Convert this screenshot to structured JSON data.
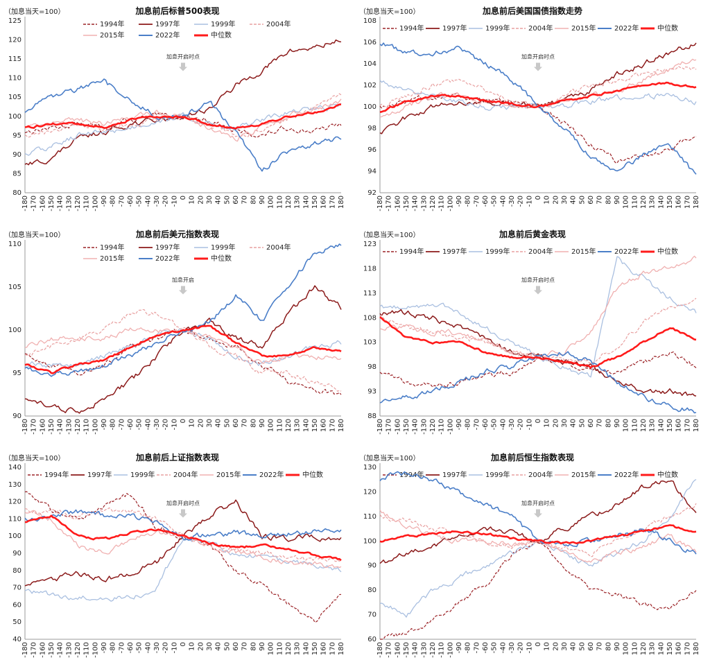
{
  "legend_years": [
    "1994年",
    "1997年",
    "1999年",
    "2004年",
    "2015年",
    "2022年",
    "中位数"
  ],
  "series_colors": [
    "#9b2226",
    "#8b1a1a",
    "#a9bfe0",
    "#e8a0a0",
    "#f0b0b0",
    "#4a7ec8",
    "#ff1a1a"
  ],
  "x_ticks": [
    "-180",
    "-170",
    "-160",
    "-150",
    "-140",
    "-130",
    "-120",
    "-110",
    "-100",
    "-90",
    "-80",
    "-70",
    "-60",
    "-50",
    "-40",
    "-30",
    "-20",
    "-10",
    "0",
    "10",
    "20",
    "30",
    "40",
    "50",
    "60",
    "70",
    "80",
    "90",
    "100",
    "110",
    "120",
    "130",
    "140",
    "150",
    "160",
    "170",
    "180"
  ],
  "chart_data": [
    {
      "type": "line",
      "title": "加息前后标普500表现",
      "unit_label": "（加息当天=100）",
      "annotation": "加息开启时点",
      "ylim": [
        80,
        125
      ],
      "yticks": [
        80,
        85,
        90,
        95,
        100,
        105,
        110,
        115,
        120,
        125
      ],
      "x": [
        -180,
        -150,
        -120,
        -90,
        -60,
        -30,
        0,
        30,
        60,
        90,
        120,
        150,
        180
      ],
      "series": [
        {
          "name": "1994年",
          "values": [
            96,
            97,
            98,
            97,
            99,
            100,
            100,
            99,
            96,
            95,
            97,
            96,
            98
          ]
        },
        {
          "name": "1997年",
          "values": [
            87,
            89,
            94,
            96,
            98,
            99,
            100,
            102,
            108,
            112,
            117,
            118,
            120
          ]
        },
        {
          "name": "1999年",
          "values": [
            90,
            92,
            95,
            96,
            97,
            99,
            100,
            98,
            97,
            99,
            101,
            102,
            103
          ]
        },
        {
          "name": "2004年",
          "values": [
            95,
            96,
            98,
            97,
            98,
            99,
            100,
            98,
            95,
            96,
            99,
            102,
            106
          ]
        },
        {
          "name": "2015年",
          "values": [
            97,
            98,
            99,
            98,
            100,
            101,
            100,
            97,
            94,
            97,
            100,
            102,
            104
          ]
        },
        {
          "name": "2022年",
          "values": [
            101,
            105,
            107,
            109,
            104,
            100,
            100,
            104,
            96,
            86,
            91,
            93,
            94
          ]
        },
        {
          "name": "中位数",
          "values": [
            97,
            98,
            98,
            97,
            99,
            100,
            100,
            98,
            97,
            98,
            100,
            101,
            103
          ]
        }
      ]
    },
    {
      "type": "line",
      "title": "加息前后美国国债指数走势",
      "unit_label": "（加息当天=100）",
      "annotation": "加息开启时点",
      "ylim": [
        92,
        108
      ],
      "yticks": [
        92,
        94,
        96,
        98,
        100,
        102,
        104,
        106,
        108
      ],
      "x": [
        -180,
        -150,
        -120,
        -90,
        -60,
        -30,
        0,
        30,
        60,
        90,
        120,
        150,
        180
      ],
      "series": [
        {
          "name": "1994年",
          "values": [
            100,
            100.5,
            101,
            101,
            100.5,
            100.3,
            100,
            98.5,
            96.5,
            95,
            95.5,
            96,
            97.5
          ]
        },
        {
          "name": "1997年",
          "values": [
            97.5,
            99,
            100,
            100.5,
            100.5,
            100.3,
            100,
            100.5,
            101.5,
            103,
            104,
            105,
            106
          ]
        },
        {
          "name": "1999年",
          "values": [
            102.5,
            101.5,
            101,
            100.5,
            100,
            100,
            100,
            100,
            100.5,
            100.8,
            101,
            101,
            100.5
          ]
        },
        {
          "name": "2004年",
          "values": [
            100,
            101,
            102,
            102.5,
            101.5,
            100.5,
            100,
            101,
            102,
            102.5,
            103,
            103.5,
            103.5
          ]
        },
        {
          "name": "2015年",
          "values": [
            99,
            100,
            101,
            101,
            100.5,
            100.3,
            100,
            100.5,
            101,
            101.5,
            102.5,
            103.5,
            104.5
          ]
        },
        {
          "name": "2022年",
          "values": [
            106,
            105,
            105,
            105.5,
            104,
            102.5,
            100,
            98,
            95.5,
            94,
            95.5,
            96.5,
            93.5
          ]
        },
        {
          "name": "中位数",
          "values": [
            99.5,
            100.5,
            101,
            101,
            100.5,
            100.3,
            100,
            100.5,
            101,
            101.5,
            102,
            102.2,
            101.8
          ]
        }
      ]
    },
    {
      "type": "line",
      "title": "加息前后美元指数表现",
      "unit_label": "（加息当天=100）",
      "annotation": "加息开启",
      "ylim": [
        90,
        110
      ],
      "yticks": [
        90,
        95,
        100,
        105,
        110
      ],
      "x": [
        -180,
        -150,
        -120,
        -90,
        -60,
        -30,
        0,
        30,
        60,
        90,
        120,
        150,
        180
      ],
      "series": [
        {
          "name": "1994年",
          "values": [
            97,
            96,
            95,
            96,
            98,
            99,
            100,
            99,
            98,
            96,
            94,
            93,
            92.5
          ]
        },
        {
          "name": "1997年",
          "values": [
            92,
            91,
            90.5,
            92,
            94,
            97,
            100,
            101,
            99,
            98,
            102,
            105,
            102.5
          ]
        },
        {
          "name": "1999年",
          "values": [
            96,
            96,
            96,
            97,
            98,
            99.5,
            100,
            99,
            97,
            96,
            97,
            98,
            98.5
          ]
        },
        {
          "name": "2004年",
          "values": [
            97,
            98,
            99,
            100,
            102,
            102,
            100,
            98,
            97,
            95,
            95,
            94,
            93
          ]
        },
        {
          "name": "2015年",
          "values": [
            98,
            99,
            99,
            99,
            100,
            100,
            100,
            99,
            98,
            96,
            97,
            97,
            96.5
          ]
        },
        {
          "name": "2022年",
          "values": [
            95.5,
            95,
            95,
            96,
            97,
            98.5,
            100,
            101,
            104,
            101,
            105,
            109,
            110
          ]
        },
        {
          "name": "中位数",
          "values": [
            96,
            95,
            96,
            96.5,
            98,
            99.5,
            100,
            100.5,
            98.5,
            97,
            97,
            98,
            97.5
          ]
        }
      ]
    },
    {
      "type": "line",
      "title": "加息前后黄金表现",
      "unit_label": "（加息当天=100）",
      "annotation": "加息开启时点",
      "ylim": [
        88,
        123
      ],
      "yticks": [
        88,
        93,
        98,
        103,
        108,
        113,
        118,
        123
      ],
      "x": [
        -180,
        -150,
        -120,
        -90,
        -60,
        -30,
        0,
        30,
        60,
        90,
        120,
        150,
        180
      ],
      "series": [
        {
          "name": "1994年",
          "values": [
            97,
            95,
            94,
            95,
            96,
            97,
            100,
            99,
            97,
            97,
            99,
            101,
            98
          ]
        },
        {
          "name": "1997年",
          "values": [
            109,
            109,
            108,
            106,
            104,
            101,
            100,
            99,
            98,
            95,
            93,
            93,
            92
          ]
        },
        {
          "name": "1999年",
          "values": [
            110,
            110,
            111,
            109,
            106,
            103,
            100,
            98,
            96,
            120,
            116,
            112,
            109
          ]
        },
        {
          "name": "2004年",
          "values": [
            108,
            106,
            105,
            104,
            103,
            101,
            100,
            100,
            99,
            102,
            107,
            110,
            112
          ]
        },
        {
          "name": "2015年",
          "values": [
            106,
            106,
            105,
            105,
            103,
            101,
            100,
            101,
            105,
            114,
            117,
            118,
            120
          ]
        },
        {
          "name": "2022年",
          "values": [
            91,
            92,
            93,
            95,
            97,
            98,
            100,
            101,
            99,
            95,
            92,
            90,
            89
          ]
        },
        {
          "name": "中位数",
          "values": [
            108,
            104,
            103,
            103,
            101,
            100,
            100,
            99,
            98,
            100,
            103,
            106,
            103.5
          ]
        }
      ]
    },
    {
      "type": "line",
      "title": "加息前后上证指数表现",
      "unit_label": "（加息当天=100）",
      "annotation": "加息开启时点",
      "ylim": [
        40,
        140
      ],
      "yticks": [
        40,
        50,
        60,
        70,
        80,
        90,
        100,
        110,
        120,
        130,
        140
      ],
      "x": [
        -180,
        -150,
        -120,
        -90,
        -60,
        -30,
        0,
        30,
        60,
        90,
        120,
        150,
        180
      ],
      "series": [
        {
          "name": "1994年",
          "values": [
            125,
            115,
            110,
            118,
            125,
            105,
            100,
            95,
            80,
            72,
            60,
            50,
            65
          ]
        },
        {
          "name": "1997年",
          "values": [
            72,
            75,
            78,
            75,
            78,
            85,
            100,
            112,
            120,
            100,
            98,
            100,
            98
          ]
        },
        {
          "name": "1999年",
          "values": [
            68,
            66,
            64,
            64,
            64,
            70,
            100,
            95,
            90,
            88,
            85,
            83,
            80
          ]
        },
        {
          "name": "2004年",
          "values": [
            115,
            114,
            112,
            114,
            115,
            110,
            100,
            95,
            92,
            90,
            88,
            86,
            85
          ]
        },
        {
          "name": "2015年",
          "values": [
            115,
            110,
            95,
            90,
            98,
            102,
            100,
            95,
            90,
            88,
            85,
            84,
            82
          ]
        },
        {
          "name": "2022年",
          "values": [
            110,
            112,
            114,
            112,
            112,
            108,
            100,
            100,
            102,
            100,
            101,
            103,
            103
          ]
        },
        {
          "name": "中位数",
          "values": [
            108,
            112,
            100,
            98,
            102,
            104,
            100,
            96,
            93,
            95,
            92,
            89,
            86
          ]
        }
      ]
    },
    {
      "type": "line",
      "title": "加息前后恒生指数表现",
      "unit_label": "（加息当天=100）",
      "annotation": "加息开启时点",
      "ylim": [
        60,
        130
      ],
      "yticks": [
        60,
        70,
        80,
        90,
        100,
        110,
        120,
        130
      ],
      "x": [
        -180,
        -150,
        -120,
        -90,
        -60,
        -30,
        0,
        30,
        60,
        90,
        120,
        150,
        180
      ],
      "series": [
        {
          "name": "1994年",
          "values": [
            60,
            62,
            68,
            75,
            82,
            95,
            100,
            90,
            80,
            78,
            74,
            72,
            80
          ]
        },
        {
          "name": "1997年",
          "values": [
            90,
            95,
            98,
            102,
            105,
            104,
            100,
            105,
            110,
            115,
            122,
            125,
            112
          ]
        },
        {
          "name": "1999年",
          "values": [
            75,
            70,
            80,
            85,
            90,
            95,
            100,
            95,
            90,
            95,
            100,
            110,
            125
          ]
        },
        {
          "name": "2004年",
          "values": [
            110,
            108,
            105,
            103,
            100,
            98,
            100,
            97,
            95,
            100,
            105,
            110,
            115
          ]
        },
        {
          "name": "2015年",
          "values": [
            112,
            106,
            102,
            100,
            100,
            99,
            100,
            96,
            92,
            95,
            98,
            102,
            96
          ]
        },
        {
          "name": "2022年",
          "values": [
            125,
            128,
            125,
            120,
            115,
            110,
            100,
            98,
            100,
            102,
            105,
            100,
            95
          ]
        },
        {
          "name": "中位数",
          "values": [
            100,
            102,
            103,
            104,
            103,
            101,
            100,
            99,
            100,
            102,
            104,
            106,
            104
          ]
        }
      ]
    }
  ]
}
